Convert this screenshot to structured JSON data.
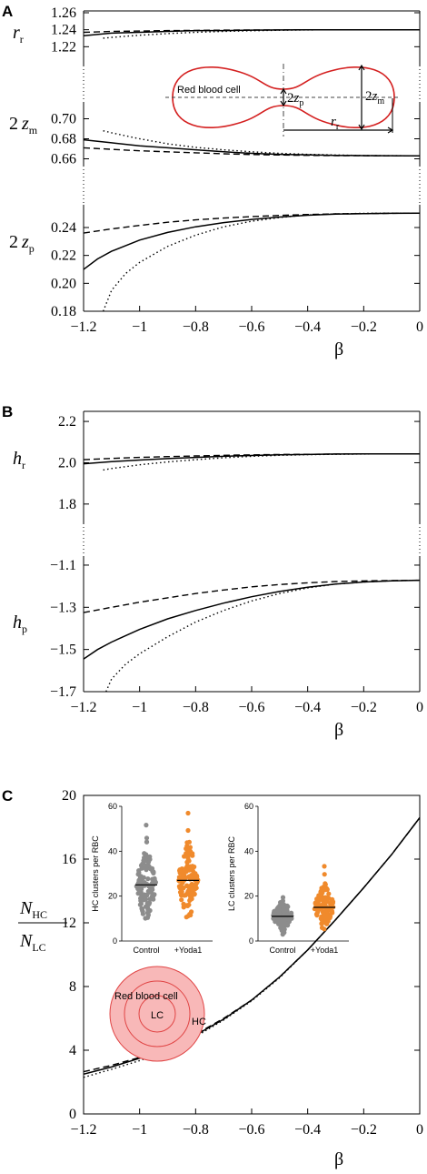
{
  "panels": {
    "A": {
      "letter": "A"
    },
    "B": {
      "letter": "B"
    },
    "C": {
      "letter": "C"
    }
  },
  "chart_data": [
    {
      "type": "line",
      "panel": "A",
      "subplot": "r_r",
      "ylabel_main": "r",
      "ylabel_sub": "r",
      "xlim": [
        -1.2,
        0
      ],
      "ylim": [
        1.2,
        1.26
      ],
      "yticks": [
        "1.26",
        "1.24",
        "1.22"
      ],
      "yticks_values": [
        1.26,
        1.24,
        1.22
      ],
      "series": [
        {
          "style": "solid",
          "x": [
            -1.2,
            -1.1,
            -1.0,
            -0.9,
            -0.8,
            -0.7,
            -0.6,
            -0.5,
            -0.4,
            -0.3,
            -0.2,
            -0.1,
            0
          ],
          "y": [
            1.233,
            1.236,
            1.237,
            1.238,
            1.239,
            1.239,
            1.2395,
            1.2398,
            1.24,
            1.24,
            1.24,
            1.24,
            1.24
          ]
        },
        {
          "style": "dashed",
          "x": [
            -1.2,
            -1.1,
            -1.0,
            -0.9,
            -0.8,
            -0.7,
            -0.6,
            -0.5,
            -0.4,
            -0.3,
            -0.2,
            -0.1,
            0
          ],
          "y": [
            1.237,
            1.238,
            1.2385,
            1.239,
            1.2392,
            1.2395,
            1.2397,
            1.2398,
            1.24,
            1.24,
            1.24,
            1.24,
            1.24
          ]
        },
        {
          "style": "dotted",
          "x": [
            -1.13,
            -1.1,
            -1.0,
            -0.9,
            -0.8,
            -0.7,
            -0.6,
            -0.5,
            -0.4,
            -0.3,
            -0.2,
            -0.1,
            0
          ],
          "y": [
            1.23,
            1.231,
            1.2335,
            1.2355,
            1.237,
            1.238,
            1.2388,
            1.2394,
            1.2398,
            1.24,
            1.24,
            1.24,
            1.24
          ]
        }
      ]
    },
    {
      "type": "line",
      "panel": "A",
      "subplot": "2z_m",
      "ylabel_prefix": "2",
      "ylabel_main": "z",
      "ylabel_sub": "m",
      "xlim": [
        -1.2,
        0
      ],
      "ylim": [
        0.655,
        0.715
      ],
      "yticks": [
        "0.70",
        "0.68",
        "0.66"
      ],
      "yticks_values": [
        0.7,
        0.68,
        0.66
      ],
      "series": [
        {
          "style": "solid",
          "x": [
            -1.2,
            -1.1,
            -1.0,
            -0.9,
            -0.8,
            -0.7,
            -0.6,
            -0.5,
            -0.4,
            -0.3,
            -0.2,
            -0.1,
            0
          ],
          "y": [
            0.679,
            0.676,
            0.673,
            0.671,
            0.669,
            0.667,
            0.6655,
            0.6645,
            0.664,
            0.6635,
            0.6632,
            0.6631,
            0.663
          ]
        },
        {
          "style": "dashed",
          "x": [
            -1.2,
            -1.1,
            -1.0,
            -0.9,
            -0.8,
            -0.7,
            -0.6,
            -0.5,
            -0.4,
            -0.3,
            -0.2,
            -0.1,
            0
          ],
          "y": [
            0.671,
            0.6695,
            0.668,
            0.667,
            0.666,
            0.665,
            0.6643,
            0.6638,
            0.6635,
            0.6632,
            0.6631,
            0.663,
            0.663
          ]
        },
        {
          "style": "dotted",
          "x": [
            -1.13,
            -1.1,
            -1.0,
            -0.9,
            -0.8,
            -0.7,
            -0.6,
            -0.5,
            -0.4,
            -0.3,
            -0.2,
            -0.1,
            0
          ],
          "y": [
            0.688,
            0.686,
            0.68,
            0.675,
            0.6715,
            0.669,
            0.667,
            0.6655,
            0.6645,
            0.6638,
            0.6633,
            0.6631,
            0.663
          ]
        }
      ]
    },
    {
      "type": "line",
      "panel": "A",
      "subplot": "2z_p",
      "ylabel_prefix": "2",
      "ylabel_main": "z",
      "ylabel_sub": "p",
      "xlim": [
        -1.2,
        0
      ],
      "ylim": [
        0.18,
        0.255
      ],
      "yticks": [
        "0.24",
        "0.22",
        "0.20",
        "0.18"
      ],
      "yticks_values": [
        0.24,
        0.22,
        0.2,
        0.18
      ],
      "xticks": [
        "−1.2",
        "−1",
        "−0.8",
        "−0.6",
        "−0.4",
        "−0.2",
        "0"
      ],
      "xticks_values": [
        -1.2,
        -1.0,
        -0.8,
        -0.6,
        -0.4,
        -0.2,
        0
      ],
      "xlabel": "β",
      "series": [
        {
          "style": "solid",
          "x": [
            -1.2,
            -1.15,
            -1.1,
            -1.0,
            -0.9,
            -0.8,
            -0.7,
            -0.6,
            -0.5,
            -0.4,
            -0.3,
            -0.2,
            -0.1,
            0
          ],
          "y": [
            0.21,
            0.2175,
            0.223,
            0.231,
            0.2365,
            0.2405,
            0.2435,
            0.2458,
            0.2475,
            0.2488,
            0.2496,
            0.25,
            0.2502,
            0.2503
          ]
        },
        {
          "style": "dashed",
          "x": [
            -1.2,
            -1.1,
            -1.0,
            -0.9,
            -0.8,
            -0.7,
            -0.6,
            -0.5,
            -0.4,
            -0.3,
            -0.2,
            -0.1,
            0
          ],
          "y": [
            0.236,
            0.239,
            0.2415,
            0.2438,
            0.2455,
            0.2468,
            0.2478,
            0.2487,
            0.2493,
            0.2498,
            0.25,
            0.2502,
            0.2503
          ]
        },
        {
          "style": "dotted",
          "x": [
            -1.13,
            -1.1,
            -1.05,
            -1.0,
            -0.9,
            -0.8,
            -0.7,
            -0.6,
            -0.5,
            -0.4,
            -0.3,
            -0.2,
            -0.1,
            0
          ],
          "y": [
            0.18,
            0.195,
            0.207,
            0.215,
            0.2265,
            0.2345,
            0.2405,
            0.2445,
            0.2472,
            0.249,
            0.2498,
            0.2502,
            0.2503,
            0.2503
          ]
        }
      ]
    },
    {
      "type": "line",
      "panel": "B",
      "subplot": "h_r",
      "ylabel_main": "h",
      "ylabel_sub": "r",
      "xlim": [
        -1.2,
        0
      ],
      "ylim": [
        1.72,
        2.24
      ],
      "yticks": [
        "2.2",
        "2.0",
        "1.8"
      ],
      "yticks_values": [
        2.2,
        2.0,
        1.8
      ],
      "series": [
        {
          "style": "solid",
          "x": [
            -1.2,
            -1.1,
            -1.0,
            -0.9,
            -0.8,
            -0.7,
            -0.6,
            -0.5,
            -0.4,
            -0.3,
            -0.2,
            -0.1,
            0
          ],
          "y": [
            1.995,
            2.005,
            2.013,
            2.02,
            2.026,
            2.031,
            2.035,
            2.038,
            2.04,
            2.042,
            2.043,
            2.043,
            2.043
          ]
        },
        {
          "style": "dashed",
          "x": [
            -1.2,
            -1.1,
            -1.0,
            -0.9,
            -0.8,
            -0.7,
            -0.6,
            -0.5,
            -0.4,
            -0.3,
            -0.2,
            -0.1,
            0
          ],
          "y": [
            2.015,
            2.021,
            2.026,
            2.03,
            2.033,
            2.036,
            2.038,
            2.04,
            2.041,
            2.042,
            2.043,
            2.043,
            2.043
          ]
        },
        {
          "style": "dotted",
          "x": [
            -1.13,
            -1.1,
            -1.0,
            -0.9,
            -0.8,
            -0.7,
            -0.6,
            -0.5,
            -0.4,
            -0.3,
            -0.2,
            -0.1,
            0
          ],
          "y": [
            1.965,
            1.972,
            1.99,
            2.004,
            2.015,
            2.024,
            2.031,
            2.036,
            2.039,
            2.041,
            2.042,
            2.043,
            2.043
          ]
        }
      ]
    },
    {
      "type": "line",
      "panel": "B",
      "subplot": "h_p",
      "ylabel_main": "h",
      "ylabel_sub": "p",
      "xlim": [
        -1.2,
        0
      ],
      "ylim": [
        -1.7,
        -1.07
      ],
      "yticks": [
        "-1.1",
        "-1.3",
        "-1.5",
        "-1.7"
      ],
      "yticks_display": [
        "−1.1",
        "−1.3",
        "−1.5",
        "−1.7"
      ],
      "yticks_values": [
        -1.1,
        -1.3,
        -1.5,
        -1.7
      ],
      "xticks": [
        "−1.2",
        "−1",
        "−0.8",
        "−0.6",
        "−0.4",
        "−0.2",
        "0"
      ],
      "xticks_values": [
        -1.2,
        -1.0,
        -0.8,
        -0.6,
        -0.4,
        -0.2,
        0
      ],
      "xlabel": "β",
      "series": [
        {
          "style": "solid",
          "x": [
            -1.2,
            -1.15,
            -1.1,
            -1.0,
            -0.9,
            -0.8,
            -0.7,
            -0.6,
            -0.5,
            -0.4,
            -0.3,
            -0.2,
            -0.1,
            0
          ],
          "y": [
            -1.545,
            -1.5,
            -1.465,
            -1.405,
            -1.355,
            -1.315,
            -1.28,
            -1.25,
            -1.225,
            -1.205,
            -1.19,
            -1.18,
            -1.175,
            -1.172
          ]
        },
        {
          "style": "dashed",
          "x": [
            -1.2,
            -1.1,
            -1.0,
            -0.9,
            -0.8,
            -0.7,
            -0.6,
            -0.5,
            -0.4,
            -0.3,
            -0.2,
            -0.1,
            0
          ],
          "y": [
            -1.325,
            -1.3,
            -1.276,
            -1.255,
            -1.235,
            -1.218,
            -1.203,
            -1.192,
            -1.184,
            -1.178,
            -1.175,
            -1.173,
            -1.172
          ]
        },
        {
          "style": "dotted",
          "x": [
            -1.12,
            -1.1,
            -1.05,
            -1.0,
            -0.9,
            -0.8,
            -0.7,
            -0.6,
            -0.5,
            -0.4,
            -0.3,
            -0.2,
            -0.1,
            0
          ],
          "y": [
            -1.7,
            -1.64,
            -1.57,
            -1.52,
            -1.44,
            -1.37,
            -1.315,
            -1.27,
            -1.235,
            -1.208,
            -1.19,
            -1.18,
            -1.174,
            -1.172
          ]
        }
      ]
    },
    {
      "type": "line",
      "panel": "C",
      "subplot": "ratio",
      "ylabel_num": "N",
      "ylabel_num_sub": "HC",
      "ylabel_den": "N",
      "ylabel_den_sub": "LC",
      "xlim": [
        -1.2,
        0
      ],
      "ylim": [
        0,
        20
      ],
      "yticks": [
        "20",
        "16",
        "12",
        "8",
        "4",
        "0"
      ],
      "yticks_values": [
        20,
        16,
        12,
        8,
        4,
        0
      ],
      "xticks": [
        "−1.2",
        "−1",
        "−0.8",
        "−0.6",
        "−0.4",
        "−0.2",
        "0"
      ],
      "xticks_values": [
        -1.2,
        -1.0,
        -0.8,
        -0.6,
        -0.4,
        -0.2,
        0
      ],
      "xlabel": "β",
      "series": [
        {
          "style": "solid",
          "x": [
            -1.2,
            -1.1,
            -1.0,
            -0.9,
            -0.8,
            -0.7,
            -0.6,
            -0.5,
            -0.4,
            -0.3,
            -0.2,
            -0.1,
            0
          ],
          "y": [
            2.5,
            2.95,
            3.5,
            4.15,
            4.95,
            5.95,
            7.15,
            8.6,
            10.3,
            12.2,
            14.2,
            16.3,
            18.6
          ]
        },
        {
          "style": "dashed",
          "x": [
            -1.2,
            -1.1,
            -1.0,
            -0.9,
            -0.8,
            -0.7,
            -0.6,
            -0.5,
            -0.4,
            -0.3,
            -0.2,
            -0.1,
            0
          ],
          "y": [
            2.65,
            3.05,
            3.55,
            4.2,
            5.0,
            6.0,
            7.15,
            8.6,
            10.3,
            12.2,
            14.2,
            16.3,
            18.6
          ]
        },
        {
          "style": "dotted",
          "x": [
            -1.2,
            -1.1,
            -1.0,
            -0.9,
            -0.8,
            -0.7,
            -0.6,
            -0.5,
            -0.4,
            -0.3,
            -0.2,
            -0.1,
            0
          ],
          "y": [
            2.3,
            2.8,
            3.35,
            4.0,
            4.85,
            5.9,
            7.1,
            8.55,
            10.3,
            12.2,
            14.2,
            16.3,
            18.6
          ]
        }
      ]
    },
    {
      "type": "scatter",
      "panel": "C",
      "subplot": "inset-hc",
      "ylabel": "HC clusters per RBC",
      "ylim": [
        0,
        60
      ],
      "yticks": [
        "60",
        "40",
        "20",
        "0"
      ],
      "yticks_values": [
        60,
        40,
        20,
        0
      ],
      "categories": [
        "Control",
        "+Yoda1"
      ],
      "means": [
        25,
        27
      ],
      "colors": [
        "#8c8c8c",
        "#f08a2c"
      ]
    },
    {
      "type": "scatter",
      "panel": "C",
      "subplot": "inset-lc",
      "ylabel": "LC clusters per RBC",
      "ylim": [
        0,
        60
      ],
      "yticks": [
        "60",
        "40",
        "20",
        "0"
      ],
      "yticks_values": [
        60,
        40,
        20,
        0
      ],
      "categories": [
        "Control",
        "+Yoda1"
      ],
      "means": [
        11,
        15
      ],
      "colors": [
        "#8c8c8c",
        "#f08a2c"
      ]
    }
  ],
  "insets": {
    "rbc_shape": {
      "label": "Red blood cell",
      "z_p_prefix": "2",
      "z_p_main": "z",
      "z_p_sub": "p",
      "z_m_prefix": "2",
      "z_m_main": "z",
      "z_m_sub": "m",
      "r_main": "r",
      "r_sub": "r",
      "stroke": "#d42020"
    },
    "rbc_top": {
      "label": "Red blood cell",
      "lc": "LC",
      "hc": "HC",
      "fill": "#f8b8b8",
      "stroke": "#e04545"
    }
  }
}
